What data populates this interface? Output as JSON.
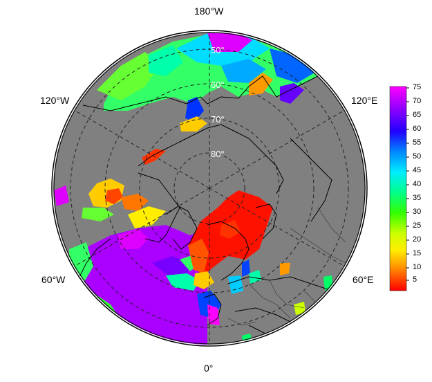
{
  "map": {
    "projection": "north-polar-stereographic",
    "background_color": "#808080",
    "longitude_labels": {
      "top": "180°W",
      "upper_left": "120°W",
      "upper_right": "120°E",
      "lower_left": "60°W",
      "lower_right": "60°E",
      "bottom": "0°"
    },
    "latitude_labels": [
      "50°",
      "60°",
      "70°",
      "80°"
    ]
  },
  "colorbar": {
    "ticks": [
      "75",
      "70",
      "65",
      "60",
      "55",
      "50",
      "45",
      "40",
      "35",
      "30",
      "25",
      "20",
      "15",
      "10",
      "5"
    ],
    "colors": [
      "#ff00ff",
      "#9900ff",
      "#2200ff",
      "#0044ff",
      "#0099ff",
      "#00ddff",
      "#00ffcc",
      "#00ff66",
      "#33ff00",
      "#99ff00",
      "#ffff00",
      "#ffcc00",
      "#ff9900",
      "#ff5500",
      "#ff0000"
    ]
  }
}
